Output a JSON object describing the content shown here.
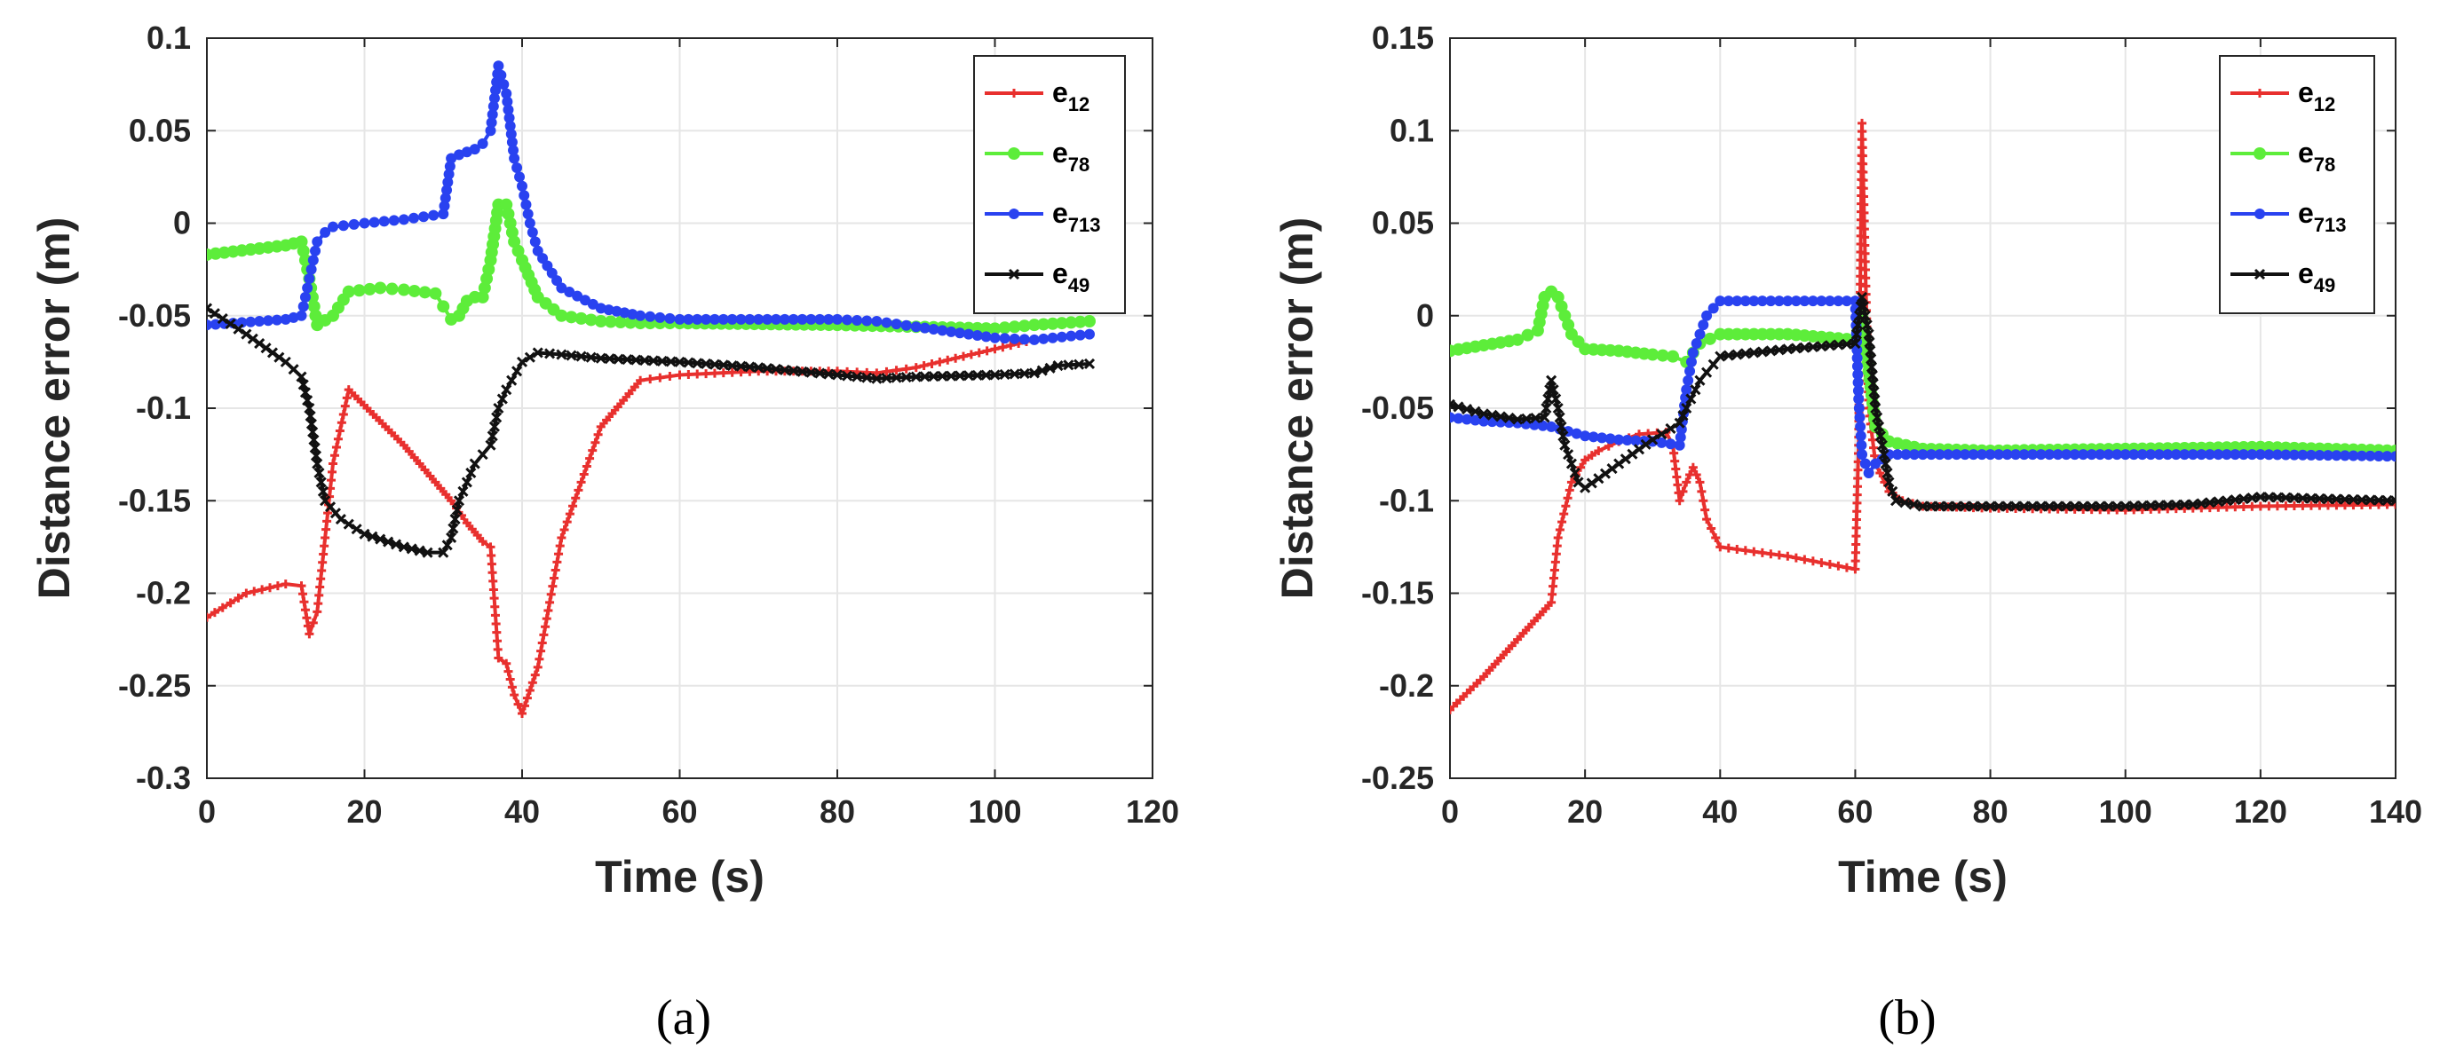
{
  "chart_data": [
    {
      "type": "line",
      "caption": "(a)",
      "xlabel": "Time (s)",
      "ylabel": "Distance error (m)",
      "xlim": [
        0,
        120
      ],
      "ylim": [
        -0.3,
        0.1
      ],
      "xticks": [
        0,
        20,
        40,
        60,
        80,
        100,
        120
      ],
      "yticks": [
        -0.3,
        -0.25,
        -0.2,
        -0.15,
        -0.1,
        -0.05,
        0,
        0.05,
        0.1
      ],
      "xtick_labels": [
        "0",
        "20",
        "40",
        "60",
        "80",
        "100",
        "120"
      ],
      "ytick_labels": [
        "-0.3",
        "-0.25",
        "-0.2",
        "-0.15",
        "-0.1",
        "-0.05",
        "0",
        "0.05",
        "0.1"
      ],
      "grid": true,
      "legend_position": "top-right",
      "series": [
        {
          "name": "e12",
          "label_main": "e",
          "label_sub": "12",
          "color": "#e8302e",
          "marker": "plus",
          "x": [
            0,
            5,
            10,
            12,
            13,
            14,
            16,
            18,
            25,
            31,
            33,
            35,
            36,
            37,
            38,
            39,
            40,
            42,
            45,
            50,
            55,
            60,
            70,
            80,
            85,
            90,
            100,
            105,
            112
          ],
          "y": [
            -0.213,
            -0.2,
            -0.195,
            -0.196,
            -0.222,
            -0.21,
            -0.13,
            -0.09,
            -0.12,
            -0.15,
            -0.162,
            -0.172,
            -0.175,
            -0.235,
            -0.238,
            -0.255,
            -0.265,
            -0.24,
            -0.17,
            -0.11,
            -0.085,
            -0.082,
            -0.08,
            -0.08,
            -0.081,
            -0.078,
            -0.068,
            -0.063,
            -0.06
          ]
        },
        {
          "name": "e78",
          "label_main": "e",
          "label_sub": "78",
          "color": "#5ded3a",
          "marker": "circle",
          "x": [
            0,
            10,
            12,
            13,
            14,
            16,
            18,
            22,
            25,
            29,
            30,
            31,
            32,
            33,
            34,
            35,
            36,
            37,
            38,
            39,
            40,
            42,
            45,
            50,
            55,
            60,
            80,
            90,
            100,
            105,
            112
          ],
          "y": [
            -0.017,
            -0.012,
            -0.01,
            -0.03,
            -0.055,
            -0.05,
            -0.037,
            -0.035,
            -0.036,
            -0.038,
            -0.045,
            -0.052,
            -0.05,
            -0.042,
            -0.04,
            -0.04,
            -0.02,
            0.01,
            0.01,
            -0.01,
            -0.02,
            -0.04,
            -0.05,
            -0.053,
            -0.054,
            -0.054,
            -0.055,
            -0.056,
            -0.057,
            -0.055,
            -0.053
          ]
        },
        {
          "name": "e713",
          "label_main": "e",
          "label_sub": "713",
          "color": "#2942f0",
          "marker": "dot",
          "x": [
            0,
            10,
            12,
            13,
            14,
            15,
            16,
            20,
            25,
            30,
            31,
            32,
            34,
            35,
            36,
            37,
            38,
            39,
            40,
            41,
            42,
            45,
            50,
            55,
            60,
            70,
            80,
            85,
            90,
            100,
            105,
            112
          ],
          "y": [
            -0.055,
            -0.052,
            -0.05,
            -0.03,
            -0.01,
            -0.005,
            -0.002,
            0.0,
            0.002,
            0.005,
            0.035,
            0.037,
            0.04,
            0.043,
            0.05,
            0.085,
            0.07,
            0.035,
            0.02,
            0.0,
            -0.015,
            -0.035,
            -0.046,
            -0.05,
            -0.052,
            -0.052,
            -0.052,
            -0.053,
            -0.056,
            -0.062,
            -0.063,
            -0.06
          ]
        },
        {
          "name": "e49",
          "label_main": "e",
          "label_sub": "49",
          "color": "#111111",
          "marker": "x",
          "x": [
            0,
            5,
            10,
            12,
            13,
            14,
            15,
            17,
            20,
            25,
            28,
            30,
            31,
            32,
            33,
            34,
            35,
            36,
            37,
            38,
            40,
            42,
            45,
            50,
            60,
            70,
            80,
            85,
            90,
            100,
            105,
            108,
            112
          ],
          "y": [
            -0.046,
            -0.06,
            -0.075,
            -0.083,
            -0.1,
            -0.13,
            -0.15,
            -0.16,
            -0.168,
            -0.175,
            -0.178,
            -0.178,
            -0.17,
            -0.15,
            -0.14,
            -0.13,
            -0.125,
            -0.12,
            -0.1,
            -0.09,
            -0.075,
            -0.07,
            -0.071,
            -0.073,
            -0.075,
            -0.078,
            -0.082,
            -0.084,
            -0.083,
            -0.082,
            -0.081,
            -0.077,
            -0.076
          ]
        }
      ]
    },
    {
      "type": "line",
      "caption": "(b)",
      "xlabel": "Time (s)",
      "ylabel": "Distance error (m)",
      "xlim": [
        0,
        140
      ],
      "ylim": [
        -0.25,
        0.15
      ],
      "xticks": [
        0,
        20,
        40,
        60,
        80,
        100,
        120,
        140
      ],
      "yticks": [
        -0.25,
        -0.2,
        -0.15,
        -0.1,
        -0.05,
        0,
        0.05,
        0.1,
        0.15
      ],
      "xtick_labels": [
        "0",
        "20",
        "40",
        "60",
        "80",
        "100",
        "120",
        "140"
      ],
      "ytick_labels": [
        "-0.25",
        "-0.2",
        "-0.15",
        "-0.1",
        "-0.05",
        "0",
        "0.05",
        "0.1",
        "0.15"
      ],
      "grid": true,
      "legend_position": "top-right",
      "series": [
        {
          "name": "e12",
          "label_main": "e",
          "label_sub": "12",
          "color": "#e8302e",
          "marker": "plus",
          "x": [
            0,
            5,
            10,
            15,
            16,
            18,
            20,
            22,
            25,
            28,
            32,
            33,
            34,
            35,
            36,
            37,
            38,
            40,
            50,
            60,
            60.5,
            61,
            62,
            63,
            65,
            67,
            70,
            80,
            100,
            120,
            140
          ],
          "y": [
            -0.213,
            -0.195,
            -0.175,
            -0.155,
            -0.12,
            -0.09,
            -0.078,
            -0.073,
            -0.068,
            -0.064,
            -0.063,
            -0.07,
            -0.1,
            -0.09,
            -0.082,
            -0.09,
            -0.11,
            -0.125,
            -0.13,
            -0.137,
            -0.07,
            0.104,
            -0.05,
            -0.08,
            -0.095,
            -0.1,
            -0.103,
            -0.104,
            -0.105,
            -0.103,
            -0.102
          ]
        },
        {
          "name": "e78",
          "label_main": "e",
          "label_sub": "78",
          "color": "#5ded3a",
          "marker": "circle",
          "x": [
            0,
            5,
            10,
            13,
            14,
            15,
            16,
            17,
            18,
            20,
            25,
            30,
            33,
            35,
            37,
            40,
            50,
            60,
            61,
            62,
            63,
            65,
            70,
            80,
            100,
            120,
            140
          ],
          "y": [
            -0.019,
            -0.016,
            -0.013,
            -0.008,
            0.01,
            0.013,
            0.01,
            0.0,
            -0.01,
            -0.018,
            -0.019,
            -0.021,
            -0.022,
            -0.025,
            -0.015,
            -0.01,
            -0.01,
            -0.013,
            0.0,
            -0.03,
            -0.06,
            -0.068,
            -0.072,
            -0.073,
            -0.072,
            -0.071,
            -0.073
          ]
        },
        {
          "name": "e713",
          "label_main": "e",
          "label_sub": "713",
          "color": "#2942f0",
          "marker": "dot",
          "x": [
            0,
            5,
            10,
            15,
            20,
            25,
            30,
            34,
            35,
            36,
            38,
            40,
            50,
            60,
            60.5,
            61,
            62,
            63,
            65,
            70,
            80,
            100,
            120,
            140
          ],
          "y": [
            -0.055,
            -0.057,
            -0.058,
            -0.06,
            -0.065,
            -0.067,
            -0.068,
            -0.07,
            -0.04,
            -0.02,
            0.0,
            0.008,
            0.008,
            0.008,
            -0.045,
            -0.075,
            -0.085,
            -0.08,
            -0.075,
            -0.075,
            -0.075,
            -0.075,
            -0.075,
            -0.076
          ]
        },
        {
          "name": "e49",
          "label_main": "e",
          "label_sub": "49",
          "color": "#111111",
          "marker": "x",
          "x": [
            0,
            5,
            10,
            14,
            15,
            16,
            17,
            18,
            19,
            20,
            22,
            25,
            30,
            34,
            35,
            37,
            40,
            50,
            60,
            61,
            62,
            63,
            64,
            65,
            66,
            70,
            80,
            100,
            110,
            120,
            140
          ],
          "y": [
            -0.048,
            -0.053,
            -0.056,
            -0.055,
            -0.035,
            -0.05,
            -0.07,
            -0.08,
            -0.09,
            -0.093,
            -0.088,
            -0.08,
            -0.067,
            -0.058,
            -0.05,
            -0.035,
            -0.022,
            -0.018,
            -0.015,
            0.01,
            -0.01,
            -0.05,
            -0.07,
            -0.09,
            -0.1,
            -0.103,
            -0.103,
            -0.103,
            -0.102,
            -0.098,
            -0.1
          ]
        }
      ]
    }
  ]
}
